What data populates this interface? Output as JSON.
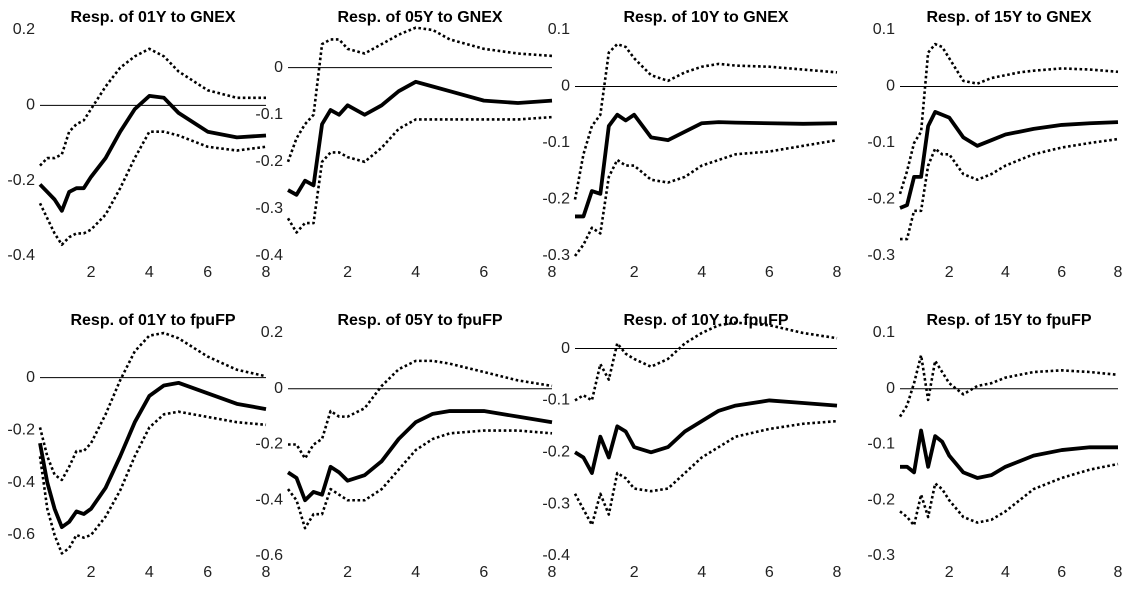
{
  "chart_data": [
    {
      "type": "line",
      "title": "Resp. of 01Y to GNEX",
      "x": [
        0.25,
        0.5,
        0.75,
        1,
        1.25,
        1.5,
        1.75,
        2,
        2.5,
        3,
        3.5,
        4,
        4.5,
        5,
        6,
        7,
        8
      ],
      "xlim": [
        0.25,
        8
      ],
      "xticks": [
        2,
        4,
        6,
        8
      ],
      "ylim": [
        -0.4,
        0.2
      ],
      "yticks": [
        -0.4,
        -0.2,
        0,
        0.2
      ],
      "reference_line": 0,
      "series": [
        {
          "color": "#000000",
          "style": "dotted",
          "values": [
            -0.16,
            -0.14,
            -0.14,
            -0.13,
            -0.07,
            -0.05,
            -0.04,
            -0.01,
            0.05,
            0.1,
            0.13,
            0.15,
            0.13,
            0.09,
            0.04,
            0.02,
            0.02
          ]
        },
        {
          "color": "#000000",
          "style": "solid",
          "values": [
            -0.21,
            -0.23,
            -0.25,
            -0.28,
            -0.23,
            -0.22,
            -0.22,
            -0.19,
            -0.14,
            -0.07,
            -0.01,
            0.025,
            0.02,
            -0.02,
            -0.07,
            -0.085,
            -0.08
          ]
        },
        {
          "color": "#000000",
          "style": "dotted",
          "values": [
            -0.26,
            -0.3,
            -0.34,
            -0.37,
            -0.35,
            -0.34,
            -0.34,
            -0.33,
            -0.29,
            -0.22,
            -0.14,
            -0.07,
            -0.07,
            -0.08,
            -0.11,
            -0.12,
            -0.11
          ]
        }
      ]
    },
    {
      "type": "line",
      "title": "Resp. of 05Y to GNEX",
      "x": [
        0.25,
        0.5,
        0.75,
        1,
        1.25,
        1.5,
        1.75,
        2,
        2.5,
        3,
        3.5,
        4,
        4.5,
        5,
        6,
        7,
        8
      ],
      "xlim": [
        0.25,
        8
      ],
      "xticks": [
        2,
        4,
        6,
        8
      ],
      "ylim": [
        -0.4,
        0.08
      ],
      "yticks": [
        -0.4,
        -0.3,
        -0.2,
        -0.1,
        0
      ],
      "reference_line": 0,
      "series": [
        {
          "color": "#000000",
          "style": "dotted",
          "values": [
            -0.2,
            -0.15,
            -0.12,
            -0.1,
            0.05,
            0.06,
            0.06,
            0.04,
            0.03,
            0.05,
            0.07,
            0.085,
            0.08,
            0.06,
            0.04,
            0.03,
            0.025
          ]
        },
        {
          "color": "#000000",
          "style": "solid",
          "values": [
            -0.26,
            -0.27,
            -0.24,
            -0.25,
            -0.12,
            -0.09,
            -0.1,
            -0.08,
            -0.1,
            -0.08,
            -0.05,
            -0.03,
            -0.04,
            -0.05,
            -0.07,
            -0.075,
            -0.07
          ]
        },
        {
          "color": "#000000",
          "style": "dotted",
          "values": [
            -0.32,
            -0.35,
            -0.33,
            -0.33,
            -0.2,
            -0.18,
            -0.18,
            -0.19,
            -0.2,
            -0.17,
            -0.13,
            -0.11,
            -0.11,
            -0.11,
            -0.11,
            -0.11,
            -0.105
          ]
        }
      ]
    },
    {
      "type": "line",
      "title": "Resp. of 10Y to GNEX",
      "x": [
        0.25,
        0.5,
        0.75,
        1,
        1.25,
        1.5,
        1.75,
        2,
        2.5,
        3,
        3.5,
        4,
        4.5,
        5,
        6,
        7,
        8
      ],
      "xlim": [
        0.25,
        8
      ],
      "xticks": [
        2,
        4,
        6,
        8
      ],
      "ylim": [
        -0.3,
        0.1
      ],
      "yticks": [
        -0.3,
        -0.2,
        -0.1,
        0,
        0.1
      ],
      "reference_line": 0,
      "series": [
        {
          "color": "#000000",
          "style": "dotted",
          "values": [
            -0.2,
            -0.12,
            -0.07,
            -0.05,
            0.06,
            0.075,
            0.07,
            0.05,
            0.02,
            0.01,
            0.025,
            0.035,
            0.04,
            0.037,
            0.035,
            0.03,
            0.025
          ]
        },
        {
          "color": "#000000",
          "style": "solid",
          "values": [
            -0.23,
            -0.23,
            -0.185,
            -0.19,
            -0.07,
            -0.05,
            -0.06,
            -0.05,
            -0.09,
            -0.095,
            -0.08,
            -0.065,
            -0.063,
            -0.064,
            -0.065,
            -0.066,
            -0.065
          ]
        },
        {
          "color": "#000000",
          "style": "dotted",
          "values": [
            -0.3,
            -0.28,
            -0.25,
            -0.26,
            -0.16,
            -0.13,
            -0.14,
            -0.14,
            -0.165,
            -0.17,
            -0.16,
            -0.14,
            -0.13,
            -0.12,
            -0.115,
            -0.105,
            -0.095
          ]
        }
      ]
    },
    {
      "type": "line",
      "title": "Resp. of 15Y to GNEX",
      "x": [
        0.25,
        0.5,
        0.75,
        1,
        1.25,
        1.5,
        1.75,
        2,
        2.5,
        3,
        3.5,
        4,
        4.5,
        5,
        6,
        7,
        8
      ],
      "xlim": [
        0.25,
        8
      ],
      "xticks": [
        2,
        4,
        6,
        8
      ],
      "ylim": [
        -0.3,
        0.1
      ],
      "yticks": [
        -0.3,
        -0.2,
        -0.1,
        0,
        0.1
      ],
      "reference_line": 0,
      "series": [
        {
          "color": "#000000",
          "style": "dotted",
          "values": [
            -0.19,
            -0.15,
            -0.1,
            -0.08,
            0.06,
            0.075,
            0.07,
            0.05,
            0.01,
            0.005,
            0.015,
            0.02,
            0.025,
            0.028,
            0.032,
            0.03,
            0.026
          ]
        },
        {
          "color": "#000000",
          "style": "solid",
          "values": [
            -0.215,
            -0.21,
            -0.16,
            -0.16,
            -0.07,
            -0.045,
            -0.05,
            -0.055,
            -0.09,
            -0.105,
            -0.095,
            -0.085,
            -0.08,
            -0.075,
            -0.068,
            -0.065,
            -0.063
          ]
        },
        {
          "color": "#000000",
          "style": "dotted",
          "values": [
            -0.27,
            -0.27,
            -0.22,
            -0.22,
            -0.14,
            -0.11,
            -0.12,
            -0.12,
            -0.155,
            -0.165,
            -0.155,
            -0.14,
            -0.13,
            -0.12,
            -0.108,
            -0.1,
            -0.093
          ]
        }
      ]
    },
    {
      "type": "line",
      "title": "Resp. of 01Y to fpuFP",
      "x": [
        0.25,
        0.5,
        0.75,
        1,
        1.25,
        1.5,
        1.75,
        2,
        2.5,
        3,
        3.5,
        4,
        4.5,
        5,
        6,
        7,
        8
      ],
      "xlim": [
        0.25,
        8
      ],
      "xticks": [
        2,
        4,
        6,
        8
      ],
      "ylim": [
        -0.68,
        0.17
      ],
      "yticks": [
        -0.6,
        -0.4,
        -0.2,
        0
      ],
      "reference_line": 0,
      "series": [
        {
          "color": "#000000",
          "style": "dotted",
          "values": [
            -0.19,
            -0.3,
            -0.37,
            -0.39,
            -0.34,
            -0.28,
            -0.28,
            -0.25,
            -0.14,
            -0.01,
            0.1,
            0.16,
            0.17,
            0.15,
            0.08,
            0.03,
            0.005
          ]
        },
        {
          "color": "#000000",
          "style": "solid",
          "values": [
            -0.25,
            -0.4,
            -0.5,
            -0.57,
            -0.55,
            -0.51,
            -0.52,
            -0.5,
            -0.42,
            -0.3,
            -0.17,
            -0.07,
            -0.03,
            -0.02,
            -0.06,
            -0.1,
            -0.12
          ]
        },
        {
          "color": "#000000",
          "style": "dotted",
          "values": [
            -0.3,
            -0.5,
            -0.6,
            -0.67,
            -0.65,
            -0.6,
            -0.61,
            -0.6,
            -0.53,
            -0.43,
            -0.3,
            -0.19,
            -0.14,
            -0.13,
            -0.15,
            -0.17,
            -0.18
          ]
        }
      ]
    },
    {
      "type": "line",
      "title": "Resp. of 05Y to fpuFP",
      "x": [
        0.25,
        0.5,
        0.75,
        1,
        1.25,
        1.5,
        1.75,
        2,
        2.5,
        3,
        3.5,
        4,
        4.5,
        5,
        6,
        7,
        8
      ],
      "xlim": [
        0.25,
        8
      ],
      "xticks": [
        2,
        4,
        6,
        8
      ],
      "ylim": [
        -0.6,
        0.2
      ],
      "yticks": [
        -0.6,
        -0.4,
        -0.2,
        0,
        0.2
      ],
      "reference_line": 0,
      "series": [
        {
          "color": "#000000",
          "style": "dotted",
          "values": [
            -0.2,
            -0.2,
            -0.25,
            -0.2,
            -0.18,
            -0.08,
            -0.1,
            -0.1,
            -0.07,
            0.01,
            0.07,
            0.1,
            0.1,
            0.09,
            0.06,
            0.03,
            0.01
          ]
        },
        {
          "color": "#000000",
          "style": "solid",
          "values": [
            -0.3,
            -0.32,
            -0.4,
            -0.37,
            -0.38,
            -0.28,
            -0.3,
            -0.33,
            -0.31,
            -0.26,
            -0.18,
            -0.12,
            -0.09,
            -0.08,
            -0.08,
            -0.1,
            -0.12
          ]
        },
        {
          "color": "#000000",
          "style": "dotted",
          "values": [
            -0.36,
            -0.4,
            -0.5,
            -0.45,
            -0.45,
            -0.36,
            -0.38,
            -0.4,
            -0.4,
            -0.36,
            -0.29,
            -0.22,
            -0.18,
            -0.16,
            -0.15,
            -0.15,
            -0.16
          ]
        }
      ]
    },
    {
      "type": "line",
      "title": "Resp. of 10Y to fpuFP",
      "x": [
        0.25,
        0.5,
        0.75,
        1,
        1.25,
        1.5,
        1.75,
        2,
        2.5,
        3,
        3.5,
        4,
        4.5,
        5,
        6,
        7,
        8
      ],
      "xlim": [
        0.25,
        8
      ],
      "xticks": [
        2,
        4,
        6,
        8
      ],
      "ylim": [
        -0.4,
        0.03
      ],
      "yticks": [
        -0.4,
        -0.3,
        -0.2,
        -0.1,
        0
      ],
      "reference_line": 0,
      "series": [
        {
          "color": "#000000",
          "style": "dotted",
          "values": [
            -0.1,
            -0.09,
            -0.1,
            -0.03,
            -0.06,
            0.01,
            -0.01,
            -0.02,
            -0.035,
            -0.02,
            0.01,
            0.03,
            0.045,
            0.05,
            0.045,
            0.03,
            0.02
          ]
        },
        {
          "color": "#000000",
          "style": "solid",
          "values": [
            -0.2,
            -0.21,
            -0.24,
            -0.17,
            -0.21,
            -0.15,
            -0.16,
            -0.19,
            -0.2,
            -0.19,
            -0.16,
            -0.14,
            -0.12,
            -0.11,
            -0.1,
            -0.105,
            -0.11
          ]
        },
        {
          "color": "#000000",
          "style": "dotted",
          "values": [
            -0.28,
            -0.31,
            -0.34,
            -0.28,
            -0.32,
            -0.24,
            -0.25,
            -0.27,
            -0.275,
            -0.27,
            -0.24,
            -0.21,
            -0.19,
            -0.17,
            -0.155,
            -0.145,
            -0.14
          ]
        }
      ]
    },
    {
      "type": "line",
      "title": "Resp. of 15Y to fpuFP",
      "x": [
        0.25,
        0.5,
        0.75,
        1,
        1.25,
        1.5,
        1.75,
        2,
        2.5,
        3,
        3.5,
        4,
        4.5,
        5,
        6,
        7,
        8
      ],
      "xlim": [
        0.25,
        8
      ],
      "xticks": [
        2,
        4,
        6,
        8
      ],
      "ylim": [
        -0.3,
        0.1
      ],
      "yticks": [
        -0.3,
        -0.2,
        -0.1,
        0,
        0.1
      ],
      "reference_line": 0,
      "series": [
        {
          "color": "#000000",
          "style": "dotted",
          "values": [
            -0.05,
            -0.03,
            0.01,
            0.06,
            -0.02,
            0.05,
            0.03,
            0.01,
            -0.01,
            0.005,
            0.01,
            0.02,
            0.025,
            0.03,
            0.033,
            0.03,
            0.025
          ]
        },
        {
          "color": "#000000",
          "style": "solid",
          "values": [
            -0.14,
            -0.14,
            -0.15,
            -0.075,
            -0.14,
            -0.085,
            -0.095,
            -0.12,
            -0.15,
            -0.16,
            -0.155,
            -0.14,
            -0.13,
            -0.12,
            -0.11,
            -0.105,
            -0.105
          ]
        },
        {
          "color": "#000000",
          "style": "dotted",
          "values": [
            -0.22,
            -0.23,
            -0.245,
            -0.19,
            -0.23,
            -0.17,
            -0.18,
            -0.2,
            -0.23,
            -0.24,
            -0.235,
            -0.22,
            -0.2,
            -0.18,
            -0.16,
            -0.145,
            -0.135
          ]
        }
      ]
    }
  ]
}
